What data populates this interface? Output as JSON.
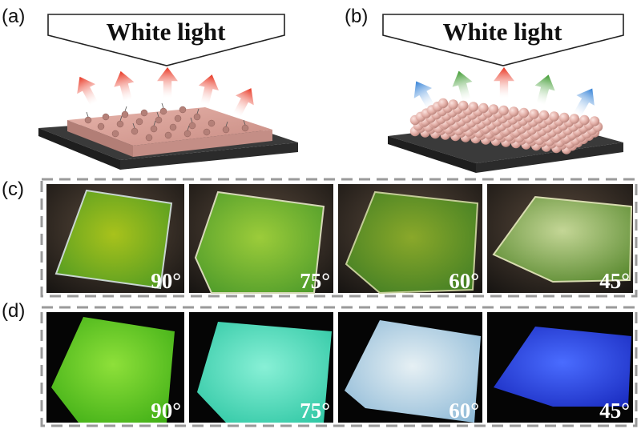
{
  "panels": {
    "a": {
      "label": "(a)",
      "banner": "White light"
    },
    "b": {
      "label": "(b)",
      "banner": "White light"
    },
    "c": {
      "label": "(c)",
      "angles": [
        "90°",
        "75°",
        "60°",
        "45°"
      ]
    },
    "d": {
      "label": "(d)",
      "angles": [
        "90°",
        "75°",
        "60°",
        "45°"
      ]
    }
  },
  "colors": {
    "arrow_red": "#e8321e",
    "arrow_green": "#3c9a2e",
    "arrow_blue": "#2f7fd6",
    "film": "#d9a39a",
    "substrate": "#2b2b2b",
    "row_c_film": "#6fa31e",
    "row_d": [
      "#5cc21c",
      "#3fd9b8",
      "#b9d8ea",
      "#2a47e6"
    ]
  }
}
